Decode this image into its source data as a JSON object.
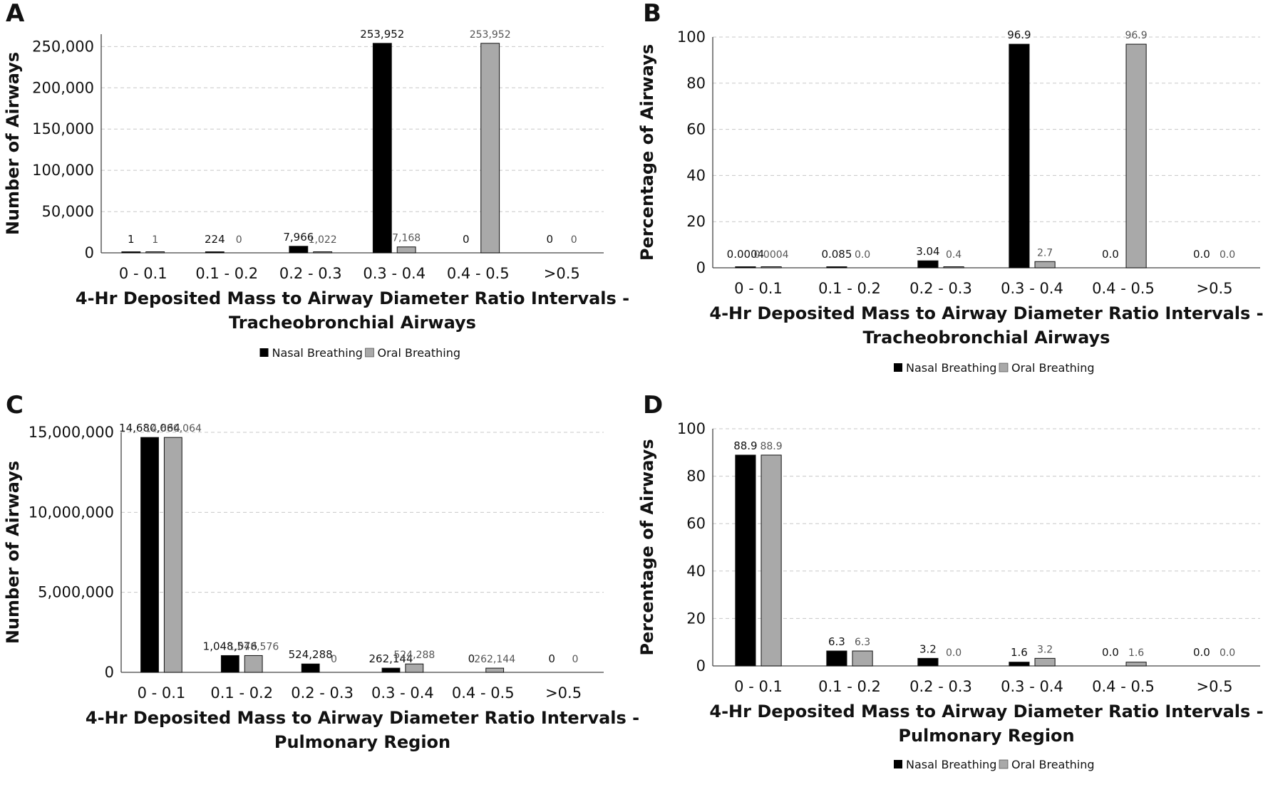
{
  "legend": {
    "nasal_label": "Nasal Breathing",
    "oral_label": "Oral Breathing"
  },
  "colors": {
    "nasal": "#000000",
    "oral": "#a9a9a9",
    "grid": "#c8c8c8",
    "axis": "#444444"
  },
  "chart_data": [
    {
      "panel": "A",
      "type": "bar",
      "title": "",
      "xlabel": [
        "4-Hr Deposited Mass to Airway Diameter Ratio Intervals -",
        "Tracheobronchial Airways"
      ],
      "ylabel": "Number of Airways",
      "ylim": [
        0,
        265000
      ],
      "yticks": [
        0,
        50000,
        100000,
        150000,
        200000,
        250000
      ],
      "ytick_labels": [
        "0",
        "50,000",
        "100,000",
        "150,000",
        "200,000",
        "250,000"
      ],
      "grid": true,
      "categories": [
        "0 - 0.1",
        "0.1 - 0.2",
        "0.2 - 0.3",
        "0.3 - 0.4",
        "0.4 - 0.5",
        ">0.5"
      ],
      "series": [
        {
          "name": "Nasal Breathing",
          "values": [
            1,
            224,
            7966,
            253952,
            0,
            0
          ],
          "labels": [
            "1",
            "224",
            "7,966",
            "253,952",
            "0",
            "0"
          ]
        },
        {
          "name": "Oral Breathing",
          "values": [
            1,
            0,
            1022,
            7168,
            253952,
            0
          ],
          "labels": [
            "1",
            "0",
            "1,022",
            "7,168",
            "253,952",
            "0"
          ]
        }
      ]
    },
    {
      "panel": "B",
      "type": "bar",
      "title": "",
      "xlabel": [
        "4-Hr Deposited Mass to Airway Diameter Ratio Intervals -",
        "Tracheobronchial Airways"
      ],
      "ylabel": "Percentage of Airways",
      "ylim": [
        0,
        100
      ],
      "yticks": [
        0,
        20,
        40,
        60,
        80,
        100
      ],
      "ytick_labels": [
        "0",
        "20",
        "40",
        "60",
        "80",
        "100"
      ],
      "grid": true,
      "categories": [
        "0 - 0.1",
        "0.1 - 0.2",
        "0.2 - 0.3",
        "0.3 - 0.4",
        "0.4 - 0.5",
        ">0.5"
      ],
      "series": [
        {
          "name": "Nasal Breathing",
          "values": [
            0.0004,
            0.085,
            3.04,
            96.9,
            0,
            0
          ],
          "labels": [
            "0.0004",
            "0.085",
            "3.04",
            "96.9",
            "0.0",
            "0.0"
          ]
        },
        {
          "name": "Oral Breathing",
          "values": [
            0.0004,
            0,
            0.4,
            2.7,
            96.9,
            0
          ],
          "labels": [
            "0.0004",
            "0.0",
            "0.4",
            "2.7",
            "96.9",
            "0.0"
          ]
        }
      ]
    },
    {
      "panel": "C",
      "type": "bar",
      "title": "",
      "xlabel": [
        "4-Hr Deposited Mass to Airway Diameter Ratio Intervals -",
        "Pulmonary Region"
      ],
      "ylabel": "Number of Airways",
      "ylim": [
        0,
        15000000
      ],
      "yticks": [
        0,
        5000000,
        10000000,
        15000000
      ],
      "ytick_labels": [
        "0",
        "5,000,000",
        "10,000,000",
        "15,000,000"
      ],
      "grid": true,
      "categories": [
        "0 - 0.1",
        "0.1 - 0.2",
        "0.2 - 0.3",
        "0.3 - 0.4",
        "0.4 - 0.5",
        ">0.5"
      ],
      "series": [
        {
          "name": "Nasal Breathing",
          "values": [
            14680064,
            1048576,
            524288,
            262144,
            0,
            0
          ],
          "labels": [
            "14,680,064",
            "1,048,576",
            "524,288",
            "262,144",
            "0",
            "0"
          ]
        },
        {
          "name": "Oral Breathing",
          "values": [
            14680064,
            1048576,
            0,
            524288,
            262144,
            0
          ],
          "labels": [
            "14,680,064",
            "1,048,576",
            "0",
            "524,288",
            "262,144",
            "0"
          ]
        }
      ]
    },
    {
      "panel": "D",
      "type": "bar",
      "title": "",
      "xlabel": [
        "4-Hr Deposited Mass to Airway Diameter Ratio Intervals -",
        "Pulmonary Region"
      ],
      "ylabel": "Percentage of Airways",
      "ylim": [
        0,
        100
      ],
      "yticks": [
        0,
        20,
        40,
        60,
        80,
        100
      ],
      "ytick_labels": [
        "0",
        "20",
        "40",
        "60",
        "80",
        "100"
      ],
      "grid": true,
      "categories": [
        "0 - 0.1",
        "0.1 - 0.2",
        "0.2 - 0.3",
        "0.3 - 0.4",
        "0.4 - 0.5",
        ">0.5"
      ],
      "series": [
        {
          "name": "Nasal Breathing",
          "values": [
            88.9,
            6.3,
            3.2,
            1.6,
            0,
            0
          ],
          "labels": [
            "88.9",
            "6.3",
            "3.2",
            "1.6",
            "0.0",
            "0.0"
          ]
        },
        {
          "name": "Oral Breathing",
          "values": [
            88.9,
            6.3,
            0,
            3.2,
            1.6,
            0
          ],
          "labels": [
            "88.9",
            "6.3",
            "0.0",
            "3.2",
            "1.6",
            "0.0"
          ]
        }
      ]
    }
  ]
}
